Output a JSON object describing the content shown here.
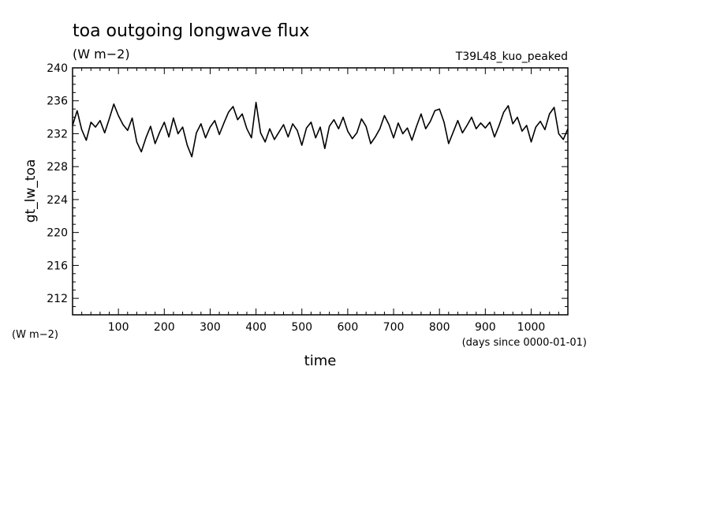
{
  "chart_data": {
    "type": "line",
    "title": "toa outgoing longwave flux",
    "subtitle": "(W m−2)",
    "experiment": "T39L48_kuo_peaked",
    "ylabel": "gt_lw_toa",
    "yunits": "(W m−2)",
    "xlabel": "time",
    "xunits": "(days since 0000-01-01)",
    "xlim": [
      0,
      1080
    ],
    "ylim": [
      210,
      240
    ],
    "xticks": [
      100,
      200,
      300,
      400,
      500,
      600,
      700,
      800,
      900,
      1000
    ],
    "yticks": [
      212,
      216,
      220,
      224,
      228,
      232,
      236,
      240
    ],
    "grid": false,
    "line_color": "#000000",
    "series": [
      {
        "x": [
          0,
          10,
          20,
          30,
          40,
          50,
          60,
          70,
          80,
          90,
          100,
          110,
          120,
          130,
          140,
          150,
          160,
          170,
          180,
          190,
          200,
          210,
          220,
          230,
          240,
          250,
          260,
          270,
          280,
          290,
          300,
          310,
          320,
          330,
          340,
          350,
          360,
          370,
          380,
          390,
          400,
          410,
          420,
          430,
          440,
          450,
          460,
          470,
          480,
          490,
          500,
          510,
          520,
          530,
          540,
          550,
          560,
          570,
          580,
          590,
          600,
          610,
          620,
          630,
          640,
          650,
          660,
          670,
          680,
          690,
          700,
          710,
          720,
          730,
          740,
          750,
          760,
          770,
          780,
          790,
          800,
          810,
          820,
          830,
          840,
          850,
          860,
          870,
          880,
          890,
          900,
          910,
          920,
          930,
          940,
          950,
          960,
          970,
          980,
          990,
          1000,
          1010,
          1020,
          1030,
          1040,
          1050,
          1060,
          1070,
          1080
        ],
        "y": [
          233.0,
          234.8,
          232.5,
          231.2,
          233.4,
          232.8,
          233.6,
          232.1,
          233.8,
          235.6,
          234.2,
          233.1,
          232.4,
          233.9,
          231.0,
          229.8,
          231.5,
          232.9,
          230.8,
          232.2,
          233.4,
          231.6,
          233.9,
          232.0,
          232.8,
          230.6,
          229.2,
          232.1,
          233.2,
          231.5,
          232.8,
          233.6,
          231.9,
          233.3,
          234.6,
          235.3,
          233.7,
          234.4,
          232.6,
          231.5,
          235.8,
          232.1,
          231.0,
          232.6,
          231.3,
          232.2,
          233.1,
          231.6,
          233.2,
          232.4,
          230.6,
          232.7,
          233.4,
          231.5,
          232.8,
          230.2,
          232.9,
          233.7,
          232.6,
          234.0,
          232.3,
          231.4,
          232.1,
          233.8,
          232.9,
          230.8,
          231.6,
          232.6,
          234.2,
          233.1,
          231.5,
          233.3,
          232.0,
          232.7,
          231.2,
          232.9,
          234.4,
          232.6,
          233.5,
          234.8,
          235.0,
          233.4,
          230.8,
          232.2,
          233.6,
          232.1,
          233.0,
          234.0,
          232.6,
          233.3,
          232.7,
          233.4,
          231.6,
          233.0,
          234.6,
          235.4,
          233.2,
          234.0,
          232.3,
          233.0,
          231.0,
          232.8,
          233.5,
          232.5,
          234.4,
          235.2,
          232.0,
          231.3,
          232.6
        ]
      }
    ]
  }
}
